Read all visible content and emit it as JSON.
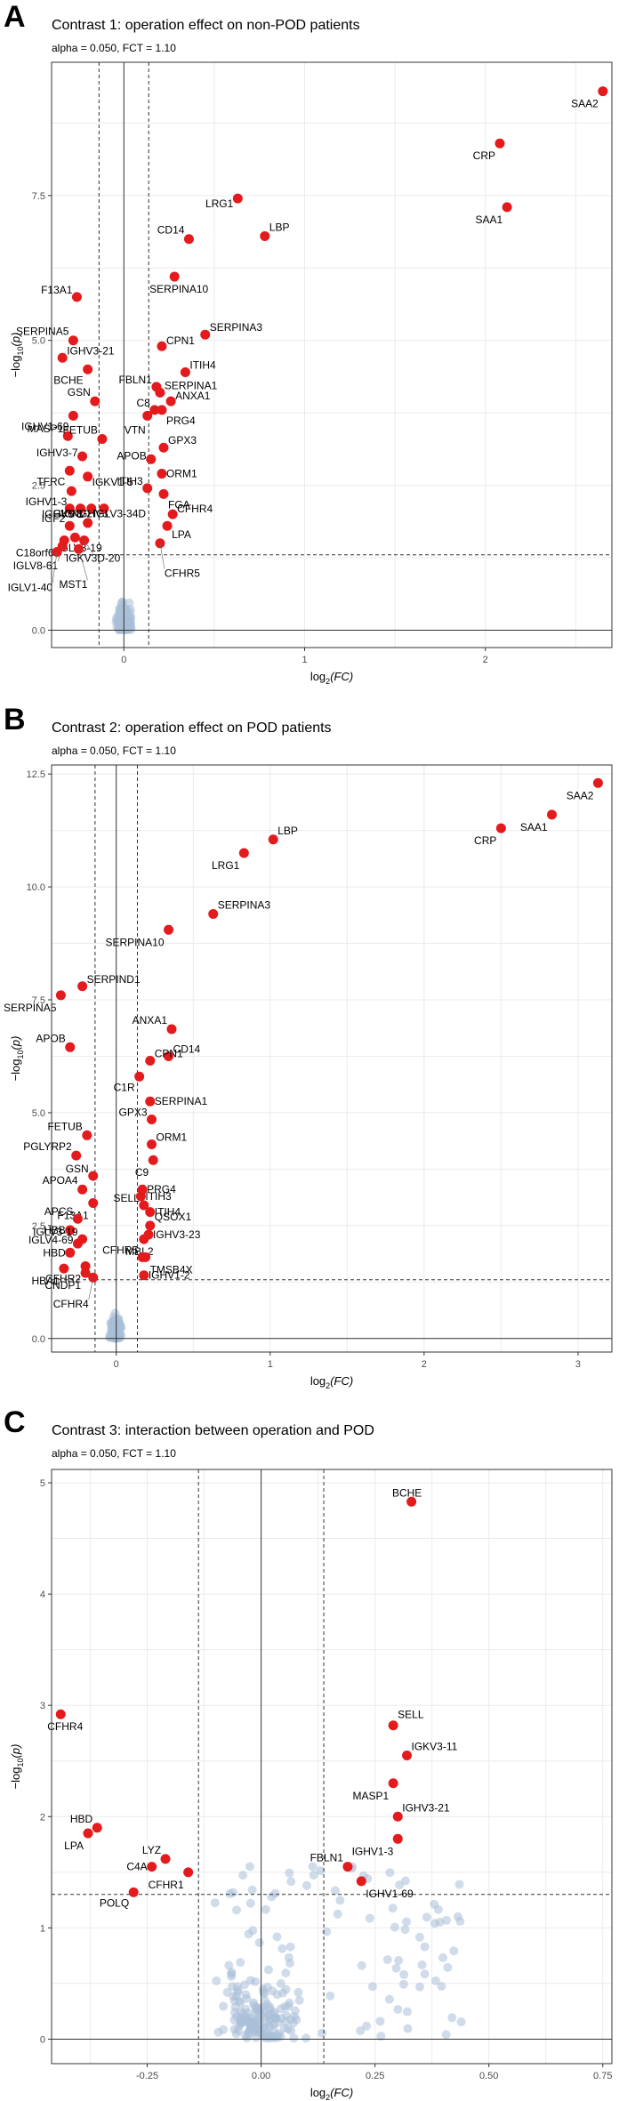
{
  "colors": {
    "significant": "#e41a1c",
    "nonsignificant": "#a9bfd8",
    "grid": "#ebebeb",
    "frame": "#333333"
  },
  "axis_labels": {
    "x_prefix": "log",
    "x_sub": "2",
    "x_paren": "(FC)",
    "y_minus": "−log",
    "y_sub": "10",
    "y_paren": "(p)"
  },
  "chart_data": [
    {
      "letter": "A",
      "type": "scatter",
      "title": "Contrast 1: operation effect on non-POD patients",
      "subtitle": "alpha = 0.050, FCT = 1.10",
      "xlim": [
        -0.4,
        2.7
      ],
      "ylim": [
        -0.3,
        9.8
      ],
      "xticks": [
        0,
        1,
        2
      ],
      "yticks": [
        0.0,
        2.5,
        5.0,
        7.5
      ],
      "ytick_labels": [
        "0.0",
        "2.5",
        "5.0",
        "7.5"
      ],
      "alpha_line": 1.301,
      "fc_lines": [
        -0.1375,
        0.1375
      ],
      "points": [
        {
          "x": 2.65,
          "y": 9.3,
          "label": "SAA2"
        },
        {
          "x": 2.08,
          "y": 8.4,
          "label": "CRP"
        },
        {
          "x": 2.12,
          "y": 7.3,
          "label": "SAA1"
        },
        {
          "x": 0.63,
          "y": 7.45,
          "label": "LRG1"
        },
        {
          "x": 0.78,
          "y": 6.8,
          "label": "LBP"
        },
        {
          "x": 0.36,
          "y": 6.75,
          "label": "CD14"
        },
        {
          "x": 0.28,
          "y": 6.1,
          "label": "SERPINA10"
        },
        {
          "x": -0.26,
          "y": 5.75,
          "label": "F13A1"
        },
        {
          "x": 0.45,
          "y": 5.1,
          "label": "SERPINA3"
        },
        {
          "x": -0.28,
          "y": 5.0,
          "label": "SERPINA5"
        },
        {
          "x": 0.21,
          "y": 4.9,
          "label": "CPN1"
        },
        {
          "x": -0.34,
          "y": 4.7,
          "label": "IGHV3-21"
        },
        {
          "x": 0.34,
          "y": 4.45,
          "label": "ITIH4"
        },
        {
          "x": -0.2,
          "y": 4.5,
          "label": "BCHE"
        },
        {
          "x": 0.18,
          "y": 4.2,
          "label": "FBLN1"
        },
        {
          "x": 0.2,
          "y": 4.1,
          "label": "SERPINA1"
        },
        {
          "x": -0.16,
          "y": 3.95,
          "label": "GSN"
        },
        {
          "x": 0.26,
          "y": 3.95,
          "label": "ANXA1"
        },
        {
          "x": 0.17,
          "y": 3.8,
          "label": "C8"
        },
        {
          "x": -0.28,
          "y": 3.7,
          "label": "IGHV1-69"
        },
        {
          "x": 0.13,
          "y": 3.7,
          "label": "VTN"
        },
        {
          "x": 0.21,
          "y": 3.8,
          "label": "PRG4"
        },
        {
          "x": -0.31,
          "y": 3.35,
          "label": "MASP1"
        },
        {
          "x": -0.12,
          "y": 3.3,
          "label": "FETUB"
        },
        {
          "x": 0.22,
          "y": 3.15,
          "label": "GPX3"
        },
        {
          "x": -0.23,
          "y": 3.0,
          "label": "IGHV3-7"
        },
        {
          "x": 0.15,
          "y": 2.95,
          "label": "APOB"
        },
        {
          "x": 0.21,
          "y": 2.7,
          "label": "ORM1"
        },
        {
          "x": -0.3,
          "y": 2.75,
          "label": "TFRC"
        },
        {
          "x": -0.2,
          "y": 2.65,
          "label": "IGKV1-5"
        },
        {
          "x": 0.13,
          "y": 2.45,
          "label": "ITIH3"
        },
        {
          "x": 0.22,
          "y": 2.35,
          "label": "FGA"
        },
        {
          "x": -0.29,
          "y": 2.4,
          "label": "IGHV1-3"
        },
        {
          "x": -0.3,
          "y": 2.1,
          "label": "IGKV3"
        },
        {
          "x": -0.24,
          "y": 2.1,
          "label": "IGKV2"
        },
        {
          "x": -0.18,
          "y": 2.1,
          "label": "IGHV3"
        },
        {
          "x": -0.11,
          "y": 2.1,
          "label": "IGLV3-34D"
        },
        {
          "x": 0.27,
          "y": 2.0,
          "label": "CFHR4"
        },
        {
          "x": -0.3,
          "y": 1.8,
          "label": "IGF2"
        },
        {
          "x": -0.2,
          "y": 1.85,
          "label": "IGHV6-1"
        },
        {
          "x": 0.24,
          "y": 1.8,
          "label": "LPA"
        },
        {
          "x": -0.27,
          "y": 1.6,
          "label": "IGLV3-19"
        },
        {
          "x": -0.33,
          "y": 1.55,
          "label": "C18orf65"
        },
        {
          "x": -0.22,
          "y": 1.55,
          "label": "IGKV3D-20"
        },
        {
          "x": 0.2,
          "y": 1.5,
          "label": "CFHR5"
        },
        {
          "x": -0.34,
          "y": 1.45,
          "label": "IGLV8-61"
        },
        {
          "x": -0.25,
          "y": 1.4,
          "label": "MST1"
        },
        {
          "x": -0.37,
          "y": 1.35,
          "label": "IGLV1-40"
        }
      ]
    },
    {
      "letter": "B",
      "type": "scatter",
      "title": "Contrast 2: operation effect on POD patients",
      "subtitle": "alpha = 0.050, FCT = 1.10",
      "xlim": [
        -0.42,
        3.22
      ],
      "ylim": [
        -0.3,
        12.7
      ],
      "xticks": [
        0,
        1,
        2,
        3
      ],
      "yticks": [
        0.0,
        2.5,
        5.0,
        7.5,
        10.0,
        12.5
      ],
      "ytick_labels": [
        "0.0",
        "2.5",
        "5.0",
        "7.5",
        "10.0",
        "12.5"
      ],
      "alpha_line": 1.301,
      "fc_lines": [
        -0.1375,
        0.1375
      ],
      "points": [
        {
          "x": 3.13,
          "y": 12.3,
          "label": "SAA2"
        },
        {
          "x": 2.83,
          "y": 11.6,
          "label": "SAA1"
        },
        {
          "x": 2.5,
          "y": 11.3,
          "label": "CRP"
        },
        {
          "x": 1.02,
          "y": 11.05,
          "label": "LBP"
        },
        {
          "x": 0.83,
          "y": 10.75,
          "label": "LRG1"
        },
        {
          "x": 0.63,
          "y": 9.4,
          "label": "SERPINA3"
        },
        {
          "x": 0.34,
          "y": 9.05,
          "label": "SERPINA10"
        },
        {
          "x": -0.22,
          "y": 7.8,
          "label": "SERPIND1"
        },
        {
          "x": -0.36,
          "y": 7.6,
          "label": "SERPINA5"
        },
        {
          "x": 0.36,
          "y": 6.85,
          "label": "ANXA1"
        },
        {
          "x": -0.3,
          "y": 6.45,
          "label": "APOB"
        },
        {
          "x": 0.34,
          "y": 6.25,
          "label": "CD14"
        },
        {
          "x": 0.22,
          "y": 6.15,
          "label": "CPN1"
        },
        {
          "x": 0.15,
          "y": 5.8,
          "label": "C1R"
        },
        {
          "x": 0.22,
          "y": 5.25,
          "label": "SERPINA1"
        },
        {
          "x": 0.23,
          "y": 4.85,
          "label": "GPX3"
        },
        {
          "x": -0.19,
          "y": 4.5,
          "label": "FETUB"
        },
        {
          "x": 0.23,
          "y": 4.3,
          "label": "ORM1"
        },
        {
          "x": -0.26,
          "y": 4.05,
          "label": "PGLYRP2"
        },
        {
          "x": 0.24,
          "y": 3.95,
          "label": "C9"
        },
        {
          "x": -0.15,
          "y": 3.6,
          "label": "GSN"
        },
        {
          "x": -0.22,
          "y": 3.3,
          "label": "APOA4"
        },
        {
          "x": 0.17,
          "y": 3.3,
          "label": "PRG4"
        },
        {
          "x": 0.16,
          "y": 3.15,
          "label": "ITIH3"
        },
        {
          "x": -0.15,
          "y": 3.0,
          "label": "F13A1"
        },
        {
          "x": 0.18,
          "y": 2.95,
          "label": "SELL"
        },
        {
          "x": 0.22,
          "y": 2.8,
          "label": "ITIH4"
        },
        {
          "x": -0.25,
          "y": 2.65,
          "label": "APCS"
        },
        {
          "x": 0.22,
          "y": 2.5,
          "label": "QSOX1"
        },
        {
          "x": -0.3,
          "y": 2.4,
          "label": "HBB"
        },
        {
          "x": -0.22,
          "y": 2.2,
          "label": "IGLV3-19"
        },
        {
          "x": 0.18,
          "y": 2.2,
          "label": "MBL2"
        },
        {
          "x": 0.21,
          "y": 2.3,
          "label": "IGHV3-23"
        },
        {
          "x": -0.25,
          "y": 2.1,
          "label": "IGLV4-69"
        },
        {
          "x": -0.3,
          "y": 1.9,
          "label": "HBD"
        },
        {
          "x": 0.17,
          "y": 1.8,
          "label": "CFHR5"
        },
        {
          "x": 0.19,
          "y": 1.8,
          "label": "TMSB4X"
        },
        {
          "x": -0.34,
          "y": 1.55,
          "label": "HBA1"
        },
        {
          "x": -0.2,
          "y": 1.6,
          "label": "CFHR2"
        },
        {
          "x": 0.18,
          "y": 1.4,
          "label": "IGHV1-2"
        },
        {
          "x": -0.2,
          "y": 1.45,
          "label": "CNDP1"
        },
        {
          "x": -0.15,
          "y": 1.35,
          "label": "CFHR4"
        }
      ]
    },
    {
      "letter": "C",
      "type": "scatter",
      "title": "Contrast 3: interaction between operation and POD",
      "subtitle": "alpha = 0.050, FCT = 1.10",
      "xlim": [
        -0.46,
        0.77
      ],
      "ylim": [
        -0.22,
        5.12
      ],
      "xticks": [
        -0.25,
        0.0,
        0.25,
        0.5,
        0.75
      ],
      "xtick_labels": [
        "-0.25",
        "0.00",
        "0.25",
        "0.50",
        "0.75"
      ],
      "yticks": [
        0,
        1,
        2,
        3,
        4,
        5
      ],
      "ytick_labels": [
        "0",
        "1",
        "2",
        "3",
        "4",
        "5"
      ],
      "alpha_line": 1.301,
      "fc_lines": [
        -0.1375,
        0.1375
      ],
      "points": [
        {
          "x": 0.33,
          "y": 4.83,
          "label": "BCHE"
        },
        {
          "x": -0.44,
          "y": 2.92,
          "label": "CFHR4"
        },
        {
          "x": 0.29,
          "y": 2.82,
          "label": "SELL"
        },
        {
          "x": 0.32,
          "y": 2.55,
          "label": "IGKV3-11"
        },
        {
          "x": 0.29,
          "y": 2.3,
          "label": "MASP1"
        },
        {
          "x": 0.3,
          "y": 2.0,
          "label": "IGHV3-21"
        },
        {
          "x": -0.36,
          "y": 1.9,
          "label": "HBD"
        },
        {
          "x": -0.38,
          "y": 1.85,
          "label": "LPA"
        },
        {
          "x": 0.3,
          "y": 1.8,
          "label": "IGHV1-3"
        },
        {
          "x": -0.21,
          "y": 1.62,
          "label": "LYZ"
        },
        {
          "x": -0.24,
          "y": 1.55,
          "label": "C4A"
        },
        {
          "x": 0.19,
          "y": 1.55,
          "label": "FBLN1"
        },
        {
          "x": -0.16,
          "y": 1.5,
          "label": "CFHR1"
        },
        {
          "x": 0.22,
          "y": 1.42,
          "label": "IGHV1-69"
        },
        {
          "x": -0.28,
          "y": 1.32,
          "label": "POLQ"
        }
      ]
    }
  ]
}
